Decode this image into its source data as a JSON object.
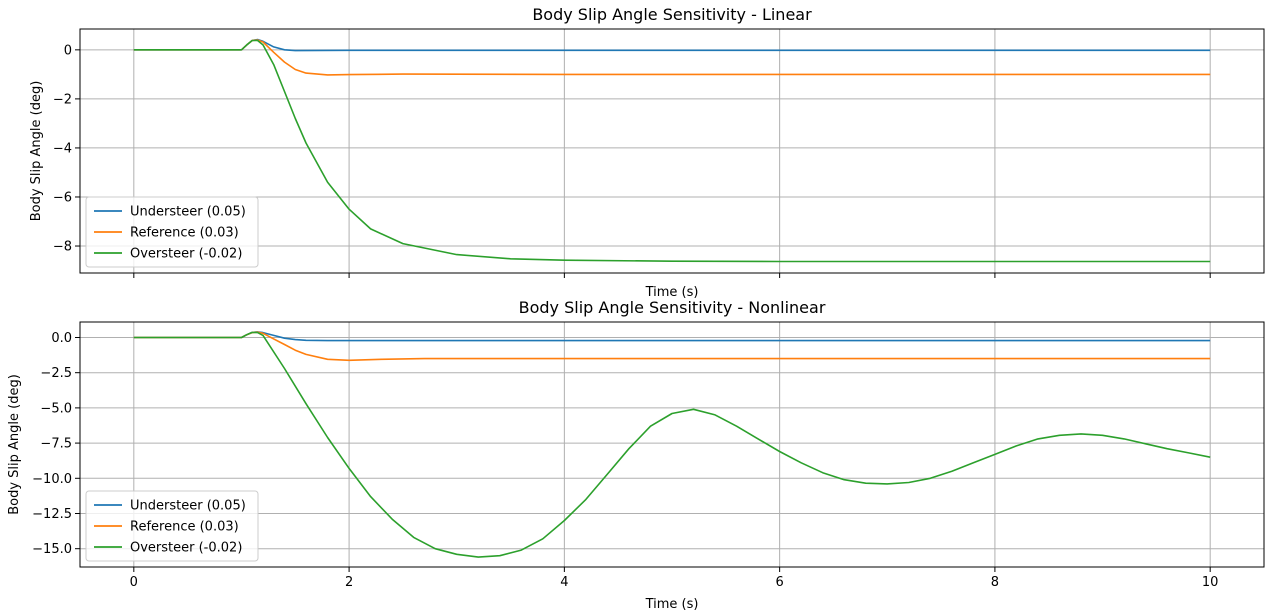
{
  "chart_data": [
    {
      "type": "line",
      "title": "Body Slip Angle Sensitivity - Linear",
      "xlabel": "Time (s)",
      "ylabel": "Body Slip Angle (deg)",
      "xlim": [
        -0.5,
        10.5
      ],
      "ylim": [
        -9.1,
        0.85
      ],
      "xticks": [
        0,
        2,
        4,
        6,
        8,
        10
      ],
      "xtick_labels": [],
      "yticks": [
        0,
        -2,
        -4,
        -6,
        -8
      ],
      "ytick_labels": [
        "0",
        "−2",
        "−4",
        "−6",
        "−8"
      ],
      "grid": true,
      "legend_position": "lower-left",
      "series": [
        {
          "name": "Understeer (0.05)",
          "color": "#1f77b4",
          "x": [
            0,
            1.0,
            1.05,
            1.1,
            1.15,
            1.2,
            1.3,
            1.4,
            1.5,
            2.0,
            4,
            6,
            8,
            10
          ],
          "y": [
            0,
            0,
            0.2,
            0.38,
            0.42,
            0.35,
            0.12,
            0.0,
            -0.03,
            -0.02,
            -0.02,
            -0.02,
            -0.02,
            -0.02
          ]
        },
        {
          "name": "Reference (0.03)",
          "color": "#ff7f0e",
          "x": [
            0,
            1.0,
            1.05,
            1.1,
            1.15,
            1.2,
            1.3,
            1.4,
            1.5,
            1.6,
            1.8,
            2.0,
            2.5,
            4,
            6,
            8,
            10
          ],
          "y": [
            0,
            0,
            0.2,
            0.38,
            0.4,
            0.32,
            -0.1,
            -0.5,
            -0.8,
            -0.95,
            -1.02,
            -1.01,
            -0.99,
            -1.0,
            -1.0,
            -1.0,
            -1.0
          ]
        },
        {
          "name": "Oversteer (-0.02)",
          "color": "#2ca02c",
          "x": [
            0,
            1.0,
            1.05,
            1.1,
            1.15,
            1.2,
            1.3,
            1.4,
            1.5,
            1.6,
            1.8,
            2.0,
            2.2,
            2.5,
            3.0,
            3.5,
            4.0,
            5.0,
            6.0,
            8.0,
            10.0
          ],
          "y": [
            0,
            0,
            0.2,
            0.38,
            0.38,
            0.2,
            -0.6,
            -1.7,
            -2.8,
            -3.8,
            -5.4,
            -6.5,
            -7.3,
            -7.9,
            -8.35,
            -8.52,
            -8.58,
            -8.62,
            -8.63,
            -8.63,
            -8.63
          ]
        }
      ]
    },
    {
      "type": "line",
      "title": "Body Slip Angle Sensitivity - Nonlinear",
      "xlabel": "Time (s)",
      "ylabel": "Body Slip Angle (deg)",
      "xlim": [
        -0.5,
        10.5
      ],
      "ylim": [
        -16.3,
        1.1
      ],
      "xticks": [
        0,
        2,
        4,
        6,
        8,
        10
      ],
      "xtick_labels": [
        "0",
        "2",
        "4",
        "6",
        "8",
        "10"
      ],
      "yticks": [
        0,
        -2.5,
        -5,
        -7.5,
        -10,
        -12.5,
        -15
      ],
      "ytick_labels": [
        "0.0",
        "−2.5",
        "−5.0",
        "−7.5",
        "−10.0",
        "−12.5",
        "−15.0"
      ],
      "grid": true,
      "legend_position": "lower-left",
      "series": [
        {
          "name": "Understeer (0.05)",
          "color": "#1f77b4",
          "x": [
            0,
            1.0,
            1.05,
            1.1,
            1.15,
            1.2,
            1.3,
            1.4,
            1.5,
            1.6,
            1.8,
            2.0,
            3,
            4,
            6,
            8,
            10
          ],
          "y": [
            0,
            0,
            0.2,
            0.36,
            0.4,
            0.35,
            0.15,
            -0.05,
            -0.15,
            -0.2,
            -0.22,
            -0.22,
            -0.22,
            -0.22,
            -0.22,
            -0.22,
            -0.22
          ]
        },
        {
          "name": "Reference (0.03)",
          "color": "#ff7f0e",
          "x": [
            0,
            1.0,
            1.05,
            1.1,
            1.15,
            1.2,
            1.3,
            1.4,
            1.5,
            1.6,
            1.8,
            2.0,
            2.3,
            2.7,
            3.0,
            4,
            6,
            8,
            10
          ],
          "y": [
            0,
            0,
            0.2,
            0.35,
            0.38,
            0.3,
            -0.1,
            -0.5,
            -0.9,
            -1.2,
            -1.55,
            -1.62,
            -1.55,
            -1.5,
            -1.5,
            -1.5,
            -1.5,
            -1.5,
            -1.5
          ]
        },
        {
          "name": "Oversteer (-0.02)",
          "color": "#2ca02c",
          "x": [
            0,
            1.0,
            1.05,
            1.1,
            1.15,
            1.2,
            1.4,
            1.6,
            1.8,
            2.0,
            2.2,
            2.4,
            2.6,
            2.8,
            3.0,
            3.2,
            3.4,
            3.6,
            3.8,
            4.0,
            4.2,
            4.4,
            4.6,
            4.8,
            5.0,
            5.2,
            5.4,
            5.6,
            5.8,
            6.0,
            6.2,
            6.4,
            6.6,
            6.8,
            7.0,
            7.2,
            7.4,
            7.6,
            7.8,
            8.0,
            8.2,
            8.4,
            8.6,
            8.8,
            9.0,
            9.2,
            9.4,
            9.6,
            9.8,
            10.0
          ],
          "y": [
            0,
            0,
            0.2,
            0.36,
            0.35,
            0.15,
            -2.2,
            -4.7,
            -7.1,
            -9.3,
            -11.3,
            -12.9,
            -14.2,
            -15.0,
            -15.4,
            -15.6,
            -15.5,
            -15.1,
            -14.3,
            -13.0,
            -11.5,
            -9.7,
            -7.9,
            -6.3,
            -5.4,
            -5.1,
            -5.5,
            -6.3,
            -7.2,
            -8.1,
            -8.9,
            -9.6,
            -10.1,
            -10.35,
            -10.4,
            -10.3,
            -10.0,
            -9.5,
            -8.9,
            -8.3,
            -7.7,
            -7.2,
            -6.95,
            -6.85,
            -6.95,
            -7.2,
            -7.55,
            -7.9,
            -8.2,
            -8.5
          ]
        }
      ]
    }
  ]
}
